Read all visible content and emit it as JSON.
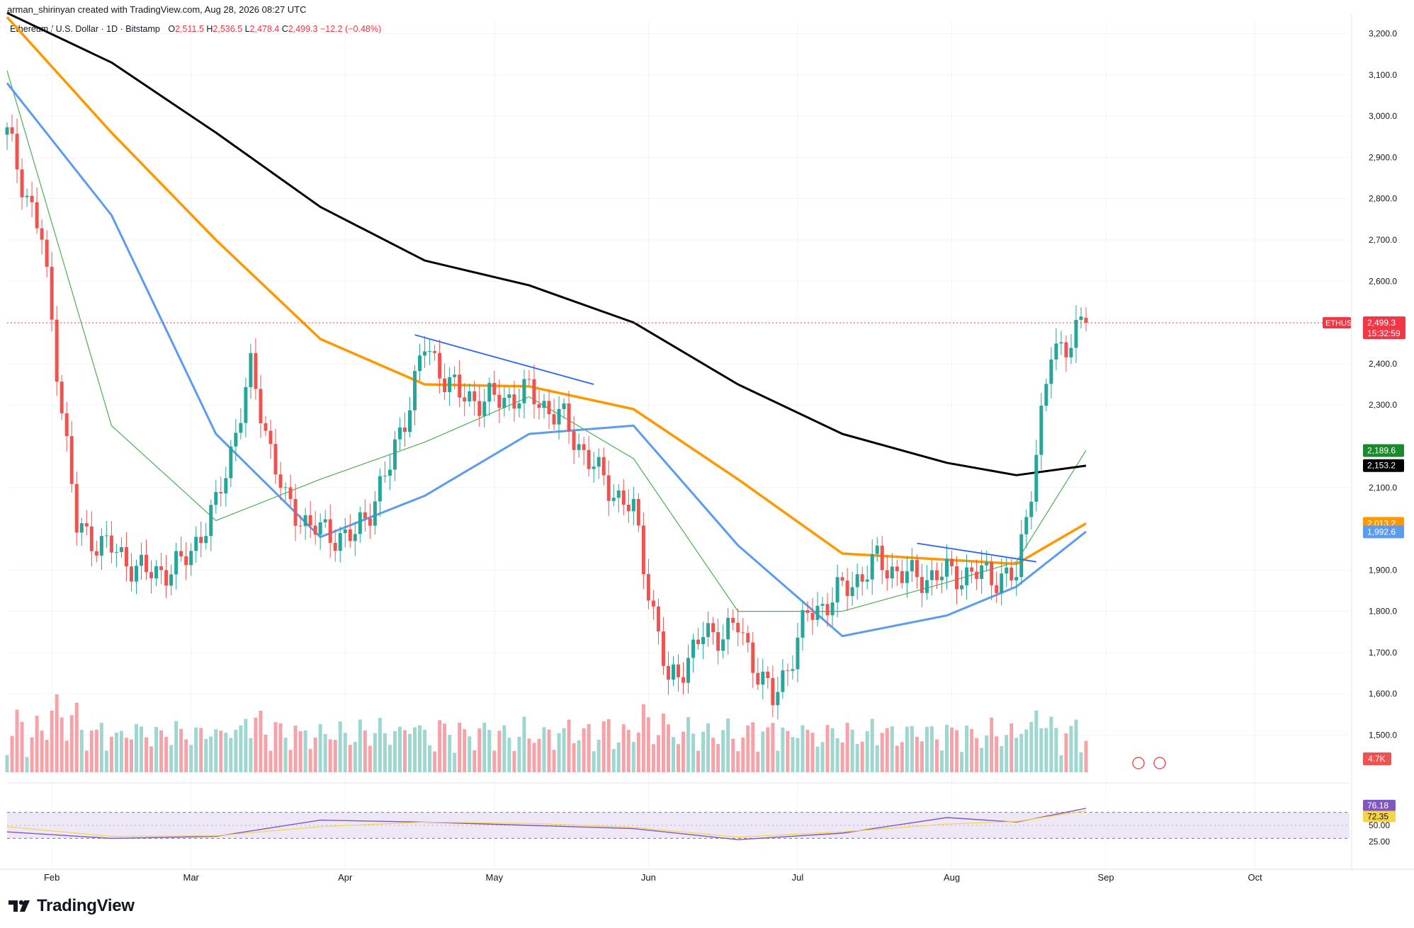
{
  "header": {
    "attribution": "arman_shirinyan created with TradingView.com, Aug 28, 2026 08:27 UTC"
  },
  "legend": {
    "symbol": "Ethereum / U.S. Dollar · 1D · Bitstamp",
    "open_label": "O",
    "open": "2,511.5",
    "high_label": "H",
    "high": "2,536.5",
    "low_label": "L",
    "low": "2,478.4",
    "close_label": "C",
    "close": "2,499.3",
    "change": "−12.2 (−0.48%)"
  },
  "colors": {
    "up": "#26a69a",
    "down": "#ef5350",
    "vol_up": "#9fd6cf",
    "vol_down": "#f5a3a8",
    "ma_short": "#4caf50",
    "ma_mid": "#5b9bf0",
    "ma_long": "#ff9800",
    "ma_200": "#000000",
    "rsi": "#7e57c2",
    "rsi_ma": "#f5d547",
    "rsi_band": "#ede7f6",
    "price_line": "#f23645",
    "trendline": "#2962ff"
  },
  "price_axis": {
    "labels": [
      "3,200.0",
      "3,100.0",
      "3,000.0",
      "2,900.0",
      "2,800.0",
      "2,700.0",
      "2,600.0",
      "2,400.0",
      "2,300.0",
      "2,100.0",
      "1,900.0",
      "1,800.0",
      "1,700.0",
      "1,600.0",
      "1,500.0"
    ],
    "tags": [
      {
        "name": "ETHUSD",
        "value": "2,499.3",
        "countdown": "15:32:59",
        "color": "#f23645"
      },
      {
        "name": "",
        "value": "2,189.6",
        "color": "#1b8a2c"
      },
      {
        "name": "",
        "value": "2,153.2",
        "color": "#000000"
      },
      {
        "name": "",
        "value": "2,013.2",
        "color": "#ff9800"
      },
      {
        "name": "",
        "value": "1,992.6",
        "color": "#5b9bf0"
      }
    ],
    "volume_tag": "4.7K"
  },
  "rsi_axis": {
    "labels": [
      "50.00",
      "25.00"
    ],
    "tags": [
      {
        "value": "76.18",
        "color": "#7e57c2"
      },
      {
        "value": "72.35",
        "color": "#f5d547"
      }
    ]
  },
  "time_axis": {
    "labels": [
      "Feb",
      "Mar",
      "Apr",
      "May",
      "Jun",
      "Jul",
      "Aug",
      "Sep",
      "Oct"
    ]
  },
  "footer": {
    "brand": "TradingView"
  },
  "chart_data": {
    "type": "candlestick",
    "title": "Ethereum / U.S. Dollar · 1D · Bitstamp",
    "ylim": [
      1410,
      3230
    ],
    "x_range": [
      "2026-01-23",
      "2026-10-20"
    ],
    "series": [
      {
        "name": "price",
        "x": [
          "2026-01-23",
          "2026-01-30",
          "2026-02-06",
          "2026-02-13",
          "2026-02-20",
          "2026-02-27",
          "2026-03-06",
          "2026-03-13",
          "2026-03-20",
          "2026-03-27",
          "2026-04-03",
          "2026-04-10",
          "2026-04-17",
          "2026-04-24",
          "2026-05-01",
          "2026-05-08",
          "2026-05-15",
          "2026-05-22",
          "2026-05-29",
          "2026-06-05",
          "2026-06-12",
          "2026-06-19",
          "2026-06-26",
          "2026-07-03",
          "2026-07-10",
          "2026-07-17",
          "2026-07-24",
          "2026-07-31",
          "2026-08-07",
          "2026-08-14",
          "2026-08-21",
          "2026-08-28"
        ],
        "values": [
          2955,
          2700,
          2000,
          1950,
          1890,
          1910,
          2050,
          2380,
          2060,
          1990,
          1980,
          2150,
          2440,
          2320,
          2310,
          2330,
          2260,
          2130,
          2040,
          1620,
          1740,
          1760,
          1580,
          1790,
          1850,
          1920,
          1880,
          1890,
          1890,
          1880,
          2420,
          2499
        ]
      },
      {
        "name": "",
        "x": [
          "2026-01-23",
          "2026-02-13",
          "2026-03-06",
          "2026-03-27",
          "2026-04-17",
          "2026-05-08",
          "2026-05-29",
          "2026-06-19",
          "2026-07-10",
          "2026-07-31",
          "2026-08-14",
          "2026-08-28"
        ],
        "values": [
          3110,
          2250,
          2020,
          2120,
          2210,
          2320,
          2170,
          1800,
          1800,
          1870,
          1920,
          2190
        ]
      },
      {
        "name": "",
        "x": [
          "2026-01-23",
          "2026-02-13",
          "2026-03-06",
          "2026-03-27",
          "2026-04-17",
          "2026-05-08",
          "2026-05-29",
          "2026-06-19",
          "2026-07-10",
          "2026-07-31",
          "2026-08-14",
          "2026-08-28"
        ],
        "values": [
          3080,
          2760,
          2230,
          1980,
          2080,
          2230,
          2250,
          1960,
          1740,
          1790,
          1860,
          1993
        ]
      },
      {
        "name": "",
        "x": [
          "2026-01-23",
          "2026-02-13",
          "2026-03-06",
          "2026-03-27",
          "2026-04-17",
          "2026-05-08",
          "2026-05-29",
          "2026-06-19",
          "2026-07-10",
          "2026-07-31",
          "2026-08-14",
          "2026-08-28"
        ],
        "values": [
          3240,
          2960,
          2700,
          2460,
          2350,
          2345,
          2290,
          2120,
          1940,
          1925,
          1915,
          2013
        ]
      },
      {
        "name": "",
        "x": [
          "2026-01-23",
          "2026-02-13",
          "2026-03-06",
          "2026-03-27",
          "2026-04-17",
          "2026-05-08",
          "2026-05-29",
          "2026-06-19",
          "2026-07-10",
          "2026-07-31",
          "2026-08-14",
          "2026-08-28"
        ],
        "values": [
          3250,
          3130,
          2960,
          2780,
          2650,
          2590,
          2500,
          2350,
          2230,
          2160,
          2130,
          2153
        ]
      },
      {
        "name": "",
        "x": [
          "2026-01-23",
          "2026-02-13",
          "2026-03-06",
          "2026-03-27",
          "2026-04-17",
          "2026-05-08",
          "2026-05-29",
          "2026-06-19",
          "2026-07-10",
          "2026-07-31",
          "2026-08-14",
          "2026-08-28"
        ],
        "values": [
          40,
          30,
          33,
          58,
          55,
          50,
          45,
          28,
          38,
          62,
          55,
          76.18
        ]
      },
      {
        "name": "",
        "x": [
          "2026-01-23",
          "2026-02-13",
          "2026-03-06",
          "2026-03-27",
          "2026-04-17",
          "2026-05-08",
          "2026-05-29",
          "2026-06-19",
          "2026-07-10",
          "2026-07-31",
          "2026-08-14",
          "2026-08-28"
        ],
        "values": [
          48,
          33,
          34,
          48,
          55,
          53,
          47,
          32,
          40,
          52,
          56,
          72.35
        ]
      }
    ],
    "last": {
      "open": 2511.5,
      "high": 2536.5,
      "low": 2478.4,
      "close": 2499.3
    },
    "annotations": [
      "ETHUSD"
    ]
  }
}
